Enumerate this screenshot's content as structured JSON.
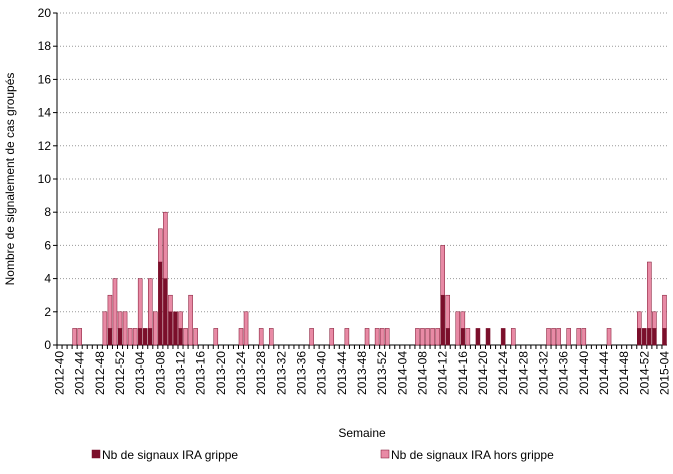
{
  "chart_data": {
    "type": "stacked_bar",
    "y_label": "Nombre de signalement de cas groupés",
    "x_label": "Semaine",
    "categories": [
      "2012-40",
      null,
      null,
      null,
      "2012-44",
      null,
      null,
      null,
      "2012-48",
      null,
      null,
      null,
      "2012-52",
      null,
      null,
      null,
      "2013-04",
      null,
      null,
      null,
      "2013-08",
      null,
      null,
      null,
      "2013-12",
      null,
      null,
      null,
      "2013-16",
      null,
      null,
      null,
      "2013-20",
      null,
      null,
      null,
      "2013-24",
      null,
      null,
      null,
      "2013-28",
      null,
      null,
      null,
      "2013-32",
      null,
      null,
      null,
      "2013-36",
      null,
      null,
      null,
      "2013-40",
      null,
      null,
      null,
      "2013-44",
      null,
      null,
      null,
      "2013-48",
      null,
      null,
      null,
      "2013-52",
      null,
      null,
      null,
      "2014-04",
      null,
      null,
      null,
      "2014-08",
      null,
      null,
      null,
      "2014-12",
      null,
      null,
      null,
      "2014-16",
      null,
      null,
      null,
      "2014-20",
      null,
      null,
      null,
      "2014-24",
      null,
      null,
      null,
      "2014-28",
      null,
      null,
      null,
      "2014-32",
      null,
      null,
      null,
      "2014-36",
      null,
      null,
      null,
      "2014-40",
      null,
      null,
      null,
      "2014-44",
      null,
      null,
      null,
      "2014-48",
      null,
      null,
      null,
      "2014-52",
      null,
      null,
      null,
      "2015-04"
    ],
    "series": [
      {
        "name": "Nb de signaux IRA grippe",
        "color": "#7b0f2b",
        "values": [
          0,
          0,
          0,
          0,
          0,
          0,
          0,
          0,
          0,
          0,
          1,
          0,
          1,
          0,
          0,
          0,
          1,
          1,
          1,
          0,
          5,
          4,
          2,
          2,
          1,
          0,
          0,
          0,
          0,
          0,
          0,
          0,
          0,
          0,
          0,
          0,
          0,
          0,
          0,
          0,
          0,
          0,
          0,
          0,
          0,
          0,
          0,
          0,
          0,
          0,
          0,
          0,
          0,
          0,
          0,
          0,
          0,
          0,
          0,
          0,
          0,
          0,
          0,
          0,
          0,
          0,
          0,
          0,
          0,
          0,
          0,
          0,
          0,
          0,
          0,
          0,
          3,
          1,
          0,
          0,
          1,
          0,
          0,
          1,
          0,
          1,
          0,
          0,
          1,
          0,
          0,
          0,
          0,
          0,
          0,
          0,
          0,
          0,
          0,
          0,
          0,
          0,
          0,
          0,
          0,
          0,
          0,
          0,
          0,
          0,
          0,
          0,
          0,
          0,
          0,
          1,
          1,
          1,
          1,
          0,
          1
        ]
      },
      {
        "name": "Nb de signaux IRA hors grippe",
        "color": "#e88aa5",
        "values": [
          0,
          0,
          0,
          1,
          1,
          0,
          0,
          0,
          0,
          2,
          2,
          4,
          1,
          2,
          1,
          1,
          3,
          0,
          3,
          2,
          2,
          4,
          1,
          0,
          1,
          1,
          3,
          1,
          0,
          0,
          0,
          1,
          0,
          0,
          0,
          0,
          1,
          2,
          0,
          0,
          1,
          0,
          1,
          0,
          0,
          0,
          0,
          0,
          0,
          0,
          1,
          0,
          0,
          0,
          1,
          0,
          0,
          1,
          0,
          0,
          0,
          1,
          0,
          1,
          1,
          1,
          0,
          0,
          0,
          0,
          0,
          1,
          1,
          1,
          1,
          1,
          3,
          2,
          0,
          2,
          1,
          1,
          0,
          0,
          0,
          0,
          0,
          0,
          0,
          0,
          1,
          0,
          0,
          0,
          0,
          0,
          0,
          1,
          1,
          1,
          0,
          1,
          0,
          1,
          1,
          0,
          0,
          0,
          0,
          1,
          0,
          0,
          0,
          0,
          0,
          1,
          0,
          4,
          1,
          0,
          2
        ]
      }
    ],
    "ylim": [
      0,
      20
    ],
    "yticks": [
      0,
      2,
      4,
      6,
      8,
      10,
      12,
      14,
      16,
      18,
      20
    ],
    "grid": true
  }
}
